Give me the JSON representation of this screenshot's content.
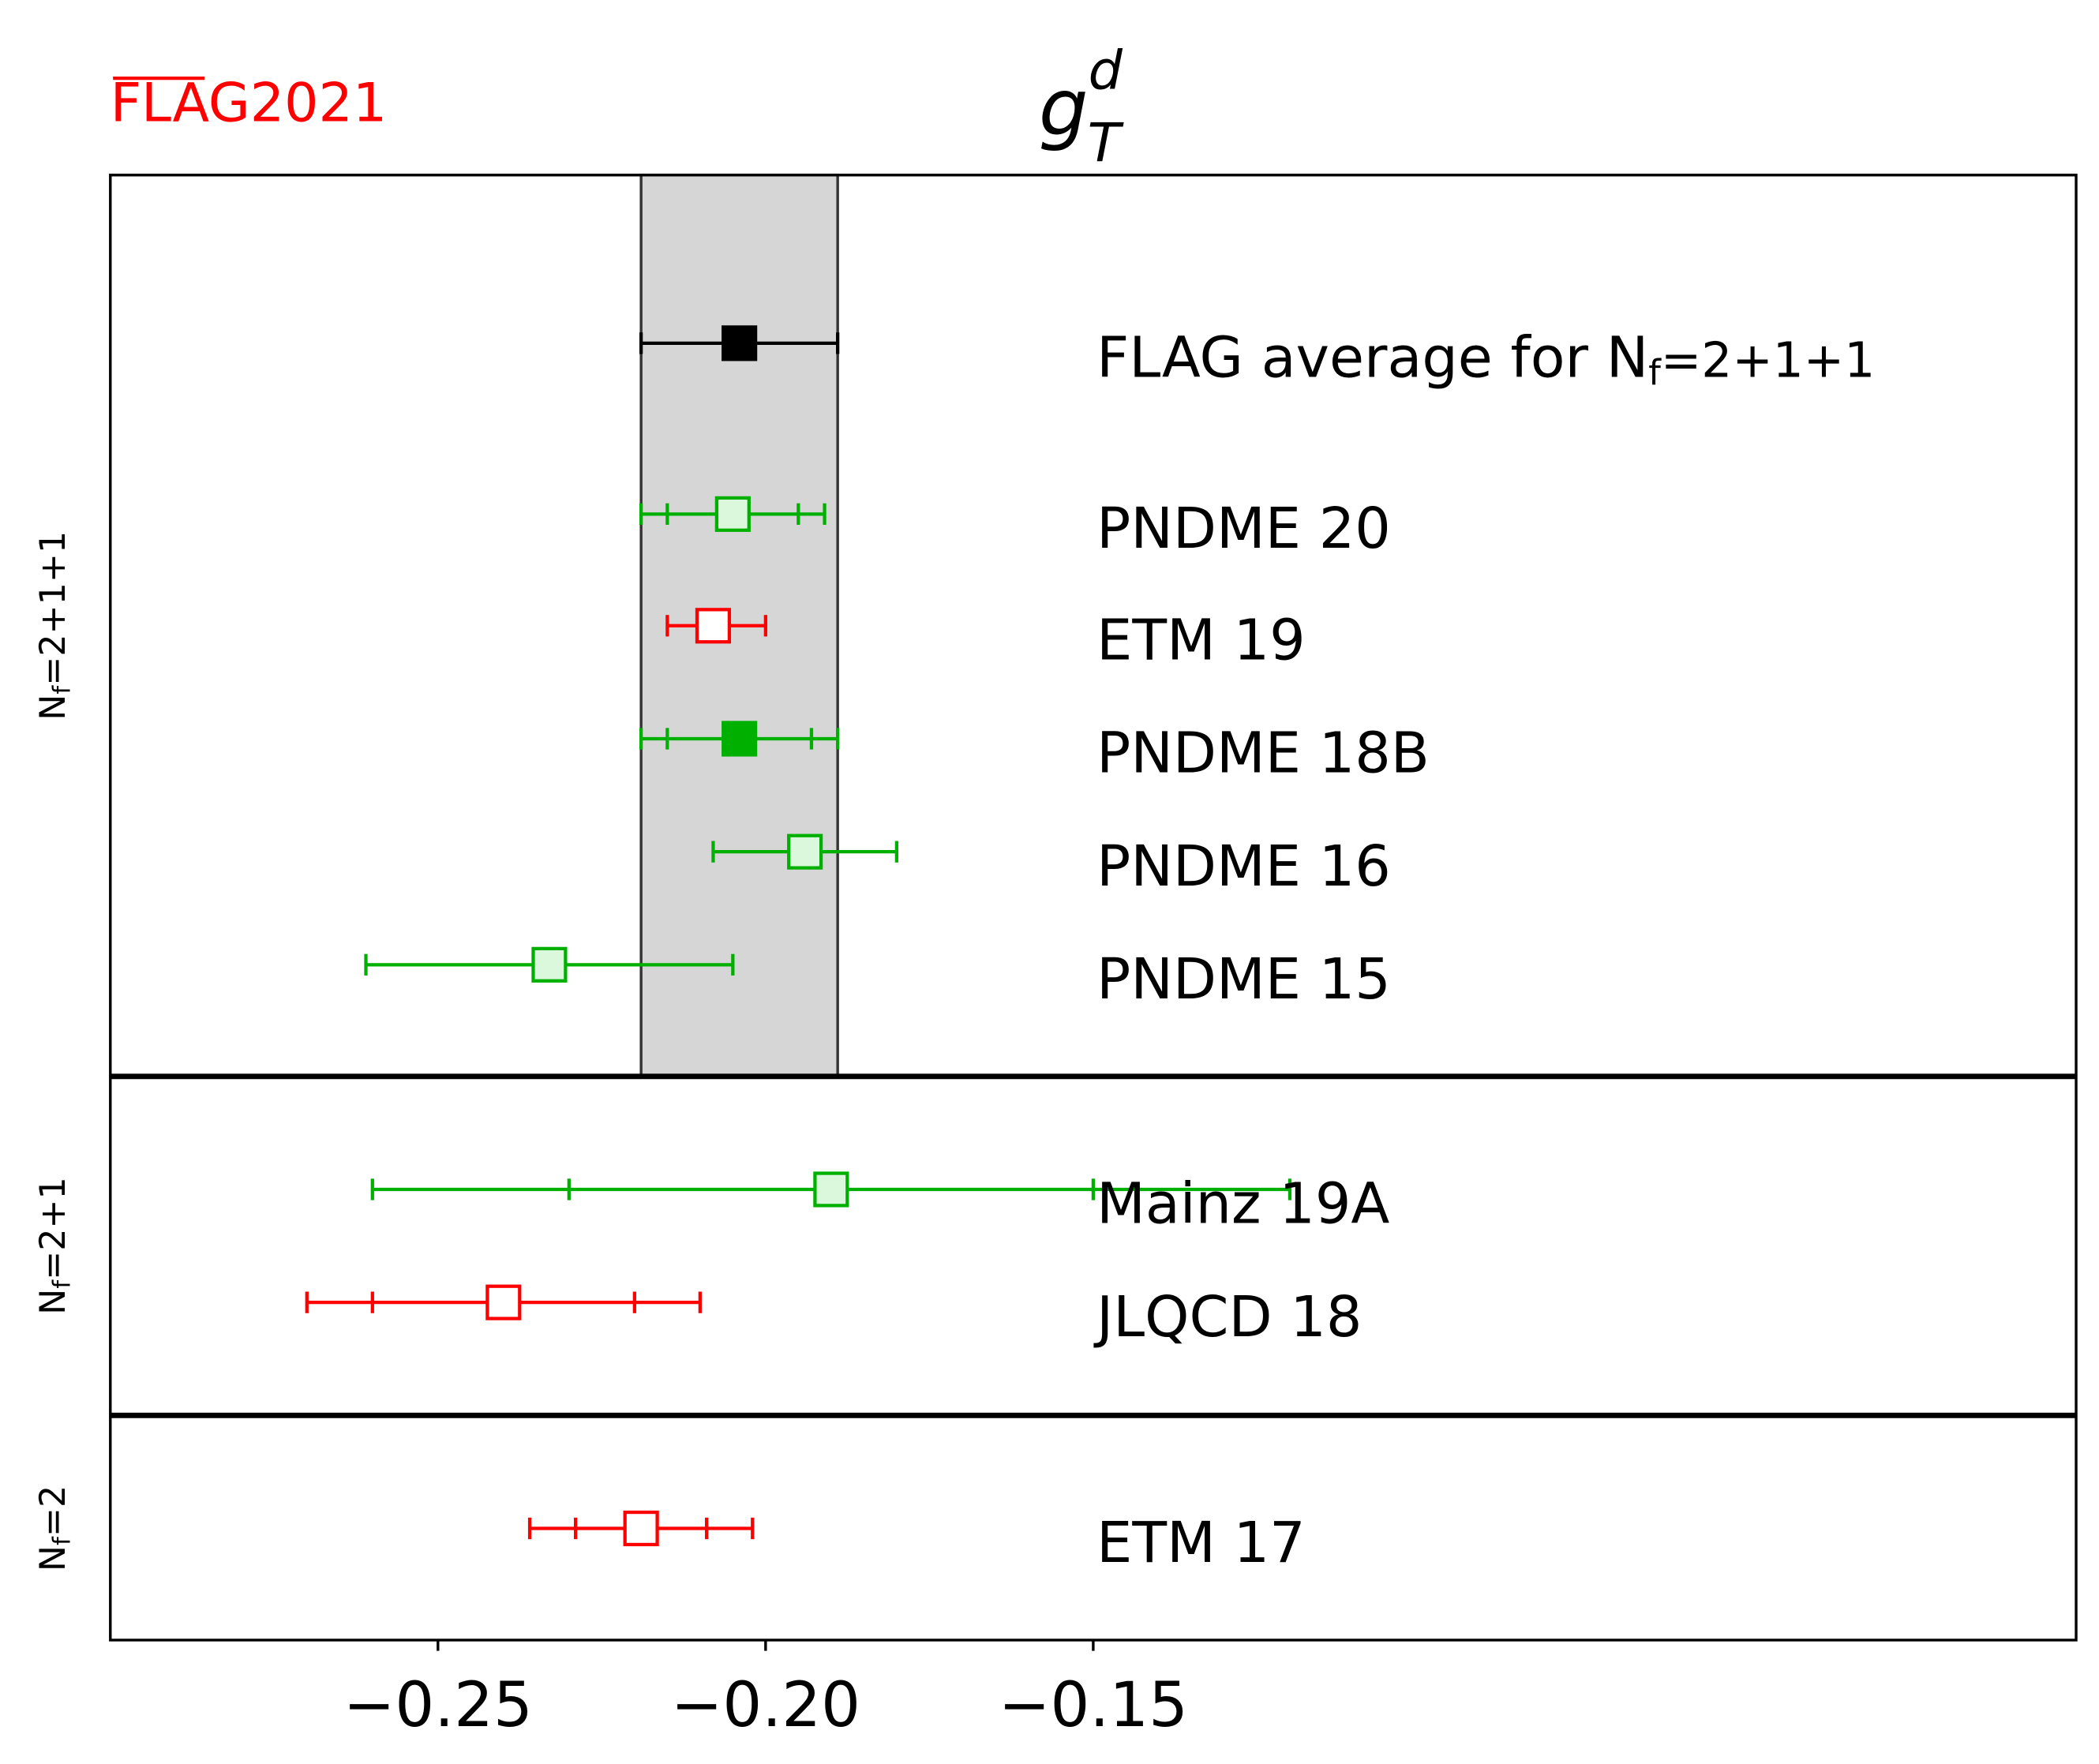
{
  "logo": {
    "text": "FLAG2021",
    "color": "#ff0000"
  },
  "chart_data": {
    "type": "scatter",
    "title": "g_T^d",
    "title_main": "g",
    "title_sup": "d",
    "title_sub": "T",
    "xlabel": "",
    "ylabel": "",
    "xlim": [
      -0.3,
      0.0
    ],
    "xticks": [
      -0.25,
      -0.2,
      -0.15
    ],
    "xtick_labels": [
      "−0.25",
      "−0.20",
      "−0.15"
    ],
    "average_band": {
      "center": -0.204,
      "low": -0.219,
      "high": -0.189
    },
    "panels": [
      {
        "label_main": "N",
        "label_sub": "f",
        "label_rest": "=2+1+1",
        "points": [
          {
            "name": "FLAG average for N_f=2+1+1",
            "label_main": "FLAG average for N",
            "label_sub": "f",
            "label_rest": "=2+1+1",
            "value": -0.204,
            "stat_low": null,
            "stat_high": null,
            "total_low": -0.219,
            "total_high": -0.189,
            "color": "#000000",
            "filled": true,
            "is_average": true
          },
          {
            "name": "PNDME 20",
            "label_main": "PNDME 20",
            "value": -0.205,
            "stat_low": -0.215,
            "stat_high": -0.195,
            "total_low": -0.219,
            "total_high": -0.191,
            "color": "#00b000",
            "filled": false
          },
          {
            "name": "ETM 19",
            "label_main": "ETM 19",
            "value": -0.208,
            "stat_low": null,
            "stat_high": null,
            "total_low": -0.215,
            "total_high": -0.2,
            "color": "#ff0000",
            "filled": false
          },
          {
            "name": "PNDME 18B",
            "label_main": "PNDME 18B",
            "value": -0.204,
            "stat_low": -0.215,
            "stat_high": -0.193,
            "total_low": -0.219,
            "total_high": -0.189,
            "color": "#00b000",
            "filled": true
          },
          {
            "name": "PNDME 16",
            "label_main": "PNDME 16",
            "value": -0.194,
            "stat_low": null,
            "stat_high": null,
            "total_low": -0.208,
            "total_high": -0.18,
            "color": "#00b000",
            "filled": false
          },
          {
            "name": "PNDME 15",
            "label_main": "PNDME 15",
            "value": -0.233,
            "stat_low": null,
            "stat_high": null,
            "total_low": -0.261,
            "total_high": -0.205,
            "color": "#00b000",
            "filled": false
          }
        ]
      },
      {
        "label_main": "N",
        "label_sub": "f",
        "label_rest": "=2+1",
        "points": [
          {
            "name": "Mainz 19A",
            "label_main": "Mainz 19A",
            "value": -0.19,
            "stat_low": -0.23,
            "stat_high": -0.15,
            "total_low": -0.26,
            "total_high": -0.12,
            "color": "#00b000",
            "filled": false
          },
          {
            "name": "JLQCD 18",
            "label_main": "JLQCD 18",
            "value": -0.24,
            "stat_low": -0.26,
            "stat_high": -0.22,
            "total_low": -0.27,
            "total_high": -0.21,
            "color": "#ff0000",
            "filled": false
          }
        ]
      },
      {
        "label_main": "N",
        "label_sub": "f",
        "label_rest": "=2",
        "points": [
          {
            "name": "ETM 17",
            "label_main": "ETM 17",
            "value": -0.219,
            "stat_low": -0.229,
            "stat_high": -0.209,
            "total_low": -0.236,
            "total_high": -0.202,
            "color": "#ff0000",
            "filled": false
          }
        ]
      }
    ]
  }
}
